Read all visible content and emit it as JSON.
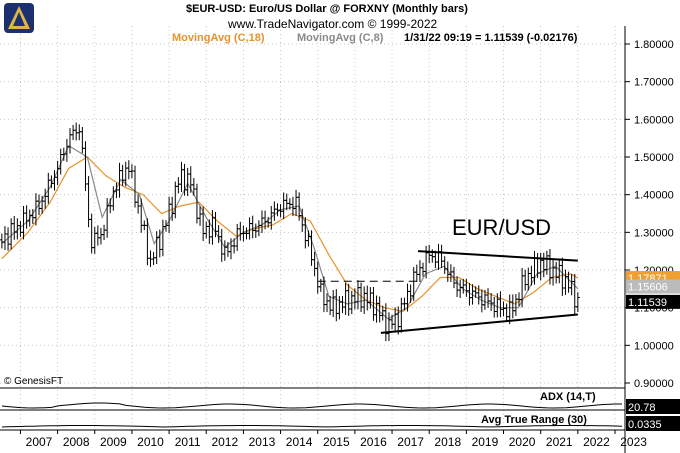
{
  "header": {
    "title": "$EUR-USD: Euro/US Dollar @ FORXNY (Monthly bars)",
    "subtitle": "www.TradeNavigator.com © 1999-2022",
    "ma18_label": "MovingAvg (C,18)",
    "ma8_label": "MovingAvg (C,8)",
    "quote": "1/31/22 09:19 = 1.11539 (-0.02176)"
  },
  "annotation": "EUR/USD",
  "copyright": "© GenesisFT",
  "colors": {
    "ma18": "#e8922a",
    "ma8": "#8a8a8a",
    "price": "#000000",
    "ma18_tag": "#f0a030"
  },
  "chart_data": {
    "type": "ohlc",
    "title": "$EUR-USD: Euro/US Dollar @ FORXNY (Monthly bars)",
    "x_ticks": [
      "2007",
      "2008",
      "2009",
      "2010",
      "2011",
      "2012",
      "2013",
      "2014",
      "2015",
      "2016",
      "2017",
      "2018",
      "2019",
      "2020",
      "2021",
      "2022",
      "2023"
    ],
    "y_ticks": [
      "1.80000",
      "1.70000",
      "1.60000",
      "1.50000",
      "1.40000",
      "1.30000",
      "1.20000",
      "1.10000",
      "1.00000",
      "0.90000"
    ],
    "ylim": [
      0.9,
      1.8
    ],
    "price_path": [
      [
        2006.5,
        1.28
      ],
      [
        2007.0,
        1.32
      ],
      [
        2007.5,
        1.37
      ],
      [
        2008.0,
        1.47
      ],
      [
        2008.3,
        1.55
      ],
      [
        2008.6,
        1.58
      ],
      [
        2008.9,
        1.27
      ],
      [
        2009.2,
        1.3
      ],
      [
        2009.5,
        1.41
      ],
      [
        2009.9,
        1.48
      ],
      [
        2010.2,
        1.35
      ],
      [
        2010.5,
        1.22
      ],
      [
        2010.9,
        1.32
      ],
      [
        2011.3,
        1.45
      ],
      [
        2011.6,
        1.43
      ],
      [
        2011.9,
        1.3
      ],
      [
        2012.2,
        1.32
      ],
      [
        2012.5,
        1.24
      ],
      [
        2012.9,
        1.3
      ],
      [
        2013.3,
        1.31
      ],
      [
        2013.7,
        1.34
      ],
      [
        2014.0,
        1.37
      ],
      [
        2014.4,
        1.38
      ],
      [
        2014.8,
        1.25
      ],
      [
        2015.1,
        1.13
      ],
      [
        2015.4,
        1.1
      ],
      [
        2015.8,
        1.12
      ],
      [
        2016.2,
        1.13
      ],
      [
        2016.5,
        1.11
      ],
      [
        2016.9,
        1.05
      ],
      [
        2017.2,
        1.08
      ],
      [
        2017.6,
        1.18
      ],
      [
        2018.0,
        1.24
      ],
      [
        2018.3,
        1.23
      ],
      [
        2018.7,
        1.16
      ],
      [
        2019.1,
        1.14
      ],
      [
        2019.5,
        1.12
      ],
      [
        2019.9,
        1.1
      ],
      [
        2020.2,
        1.09
      ],
      [
        2020.6,
        1.18
      ],
      [
        2021.0,
        1.22
      ],
      [
        2021.3,
        1.2
      ],
      [
        2021.7,
        1.17
      ],
      [
        2022.0,
        1.115
      ]
    ],
    "ma18_path": [
      [
        2006.5,
        1.23
      ],
      [
        2007.2,
        1.3
      ],
      [
        2007.8,
        1.38
      ],
      [
        2008.3,
        1.47
      ],
      [
        2008.8,
        1.5
      ],
      [
        2009.3,
        1.45
      ],
      [
        2009.8,
        1.42
      ],
      [
        2010.3,
        1.4
      ],
      [
        2010.8,
        1.35
      ],
      [
        2011.3,
        1.37
      ],
      [
        2011.8,
        1.38
      ],
      [
        2012.3,
        1.33
      ],
      [
        2012.8,
        1.29
      ],
      [
        2013.3,
        1.31
      ],
      [
        2013.8,
        1.32
      ],
      [
        2014.3,
        1.35
      ],
      [
        2014.8,
        1.33
      ],
      [
        2015.3,
        1.24
      ],
      [
        2015.8,
        1.16
      ],
      [
        2016.3,
        1.12
      ],
      [
        2016.8,
        1.1
      ],
      [
        2017.3,
        1.09
      ],
      [
        2017.8,
        1.13
      ],
      [
        2018.3,
        1.18
      ],
      [
        2018.8,
        1.18
      ],
      [
        2019.3,
        1.15
      ],
      [
        2019.8,
        1.13
      ],
      [
        2020.3,
        1.11
      ],
      [
        2020.8,
        1.14
      ],
      [
        2021.3,
        1.18
      ],
      [
        2021.8,
        1.19
      ],
      [
        2022.0,
        1.179
      ]
    ],
    "ma8_path": [
      [
        2006.5,
        1.27
      ],
      [
        2007.2,
        1.33
      ],
      [
        2007.8,
        1.42
      ],
      [
        2008.3,
        1.53
      ],
      [
        2008.8,
        1.5
      ],
      [
        2009.2,
        1.34
      ],
      [
        2009.7,
        1.44
      ],
      [
        2010.2,
        1.4
      ],
      [
        2010.6,
        1.27
      ],
      [
        2011.0,
        1.33
      ],
      [
        2011.5,
        1.43
      ],
      [
        2012.0,
        1.34
      ],
      [
        2012.5,
        1.26
      ],
      [
        2013.0,
        1.3
      ],
      [
        2013.5,
        1.32
      ],
      [
        2014.0,
        1.36
      ],
      [
        2014.5,
        1.37
      ],
      [
        2014.9,
        1.26
      ],
      [
        2015.3,
        1.13
      ],
      [
        2015.8,
        1.11
      ],
      [
        2016.3,
        1.12
      ],
      [
        2016.9,
        1.07
      ],
      [
        2017.4,
        1.1
      ],
      [
        2017.9,
        1.19
      ],
      [
        2018.4,
        1.21
      ],
      [
        2018.9,
        1.15
      ],
      [
        2019.4,
        1.12
      ],
      [
        2019.9,
        1.1
      ],
      [
        2020.4,
        1.1
      ],
      [
        2020.9,
        1.19
      ],
      [
        2021.4,
        1.21
      ],
      [
        2021.9,
        1.16
      ],
      [
        2022.0,
        1.15
      ]
    ],
    "trendlines": [
      {
        "from": [
          2017.7,
          1.25
        ],
        "to": [
          2022.0,
          1.225
        ]
      },
      {
        "from": [
          2016.7,
          1.033
        ],
        "to": [
          2022.0,
          1.082
        ]
      }
    ],
    "dashed_line": {
      "from": [
        2015.0,
        1.17
      ],
      "to": [
        2017.7,
        1.17
      ]
    },
    "price_tags": [
      {
        "label": "1.17871",
        "value": 1.17871,
        "style": "ma18"
      },
      {
        "label": "1.15606",
        "value": 1.156,
        "style": "ma8"
      },
      {
        "label": "1.11539",
        "value": 1.11539,
        "style": "price"
      }
    ],
    "indicators": [
      {
        "name": "ADX (14,T)",
        "value_label": "20.78"
      },
      {
        "name": "Avg True Range (30)",
        "value_label": "0.0335"
      }
    ]
  }
}
